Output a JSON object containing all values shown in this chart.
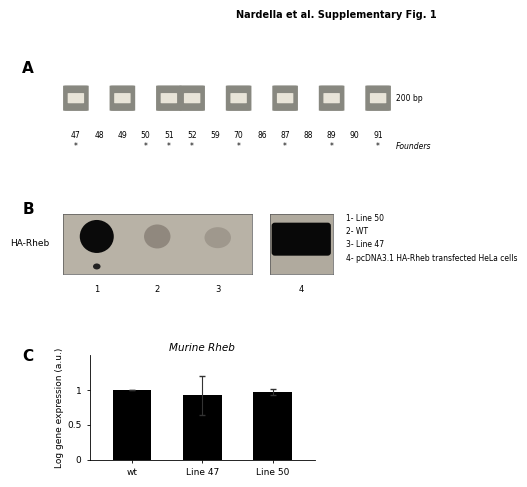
{
  "title": "Nardella et al. Supplementary Fig. 1",
  "panel_A_label": "A",
  "panel_B_label": "B",
  "panel_C_label": "C",
  "gel_lane_labels": [
    "47",
    "48",
    "49",
    "50",
    "51",
    "52",
    "59",
    "70",
    "86",
    "87",
    "88",
    "89",
    "90",
    "91"
  ],
  "gel_positive_lanes": [
    0,
    2,
    4,
    5,
    7,
    9,
    11,
    13
  ],
  "gel_size_label": "200 bp",
  "gel_founders_label": "Founders",
  "gel_asterisk_lanes": [
    0,
    3,
    4,
    5,
    7,
    9,
    11,
    13
  ],
  "wb_lane_labels": [
    "1",
    "2",
    "3",
    "4"
  ],
  "wb_ylabel": "HA-Rheb",
  "wb_legend": [
    "1- Line 50",
    "2- WT",
    "3- Line 47",
    "4- pcDNA3.1 HA-Rheb transfected HeLa cells"
  ],
  "bar_categories": [
    "wt",
    "Line 47",
    "Line 50"
  ],
  "bar_values": [
    1.0,
    0.92,
    0.97
  ],
  "bar_errors": [
    0.0,
    0.28,
    0.04
  ],
  "bar_color": "#000000",
  "bar_title": "Murine Rheb",
  "bar_ylabel": "Log gene expression (a.u.)",
  "bar_ylim": [
    0,
    1.5
  ],
  "bar_yticks": [
    0,
    0.5,
    1
  ],
  "bg_color": "#ffffff",
  "text_color": "#000000",
  "title_fontsize": 7,
  "tick_fontsize": 6.5,
  "bar_title_fontsize": 7.5,
  "bar_ylabel_fontsize": 6.5
}
